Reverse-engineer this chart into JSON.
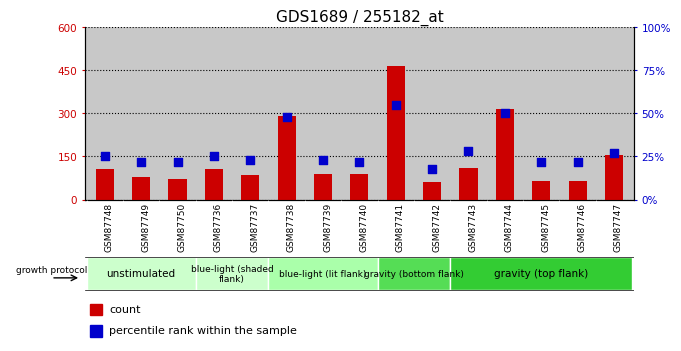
{
  "title": "GDS1689 / 255182_at",
  "samples": [
    "GSM87748",
    "GSM87749",
    "GSM87750",
    "GSM87736",
    "GSM87737",
    "GSM87738",
    "GSM87739",
    "GSM87740",
    "GSM87741",
    "GSM87742",
    "GSM87743",
    "GSM87744",
    "GSM87745",
    "GSM87746",
    "GSM87747"
  ],
  "counts": [
    108,
    80,
    70,
    108,
    85,
    290,
    90,
    90,
    465,
    60,
    110,
    315,
    65,
    65,
    155
  ],
  "percentiles": [
    25,
    22,
    22,
    25,
    23,
    48,
    23,
    22,
    55,
    18,
    28,
    50,
    22,
    22,
    27
  ],
  "ylim_left": [
    0,
    600
  ],
  "ylim_right": [
    0,
    100
  ],
  "yticks_left": [
    0,
    150,
    300,
    450,
    600
  ],
  "yticks_right": [
    0,
    25,
    50,
    75,
    100
  ],
  "ytick_labels_right": [
    "0%",
    "25%",
    "50%",
    "75%",
    "100%"
  ],
  "group_info": [
    {
      "label": "unstimulated",
      "xstart": 0,
      "xend": 2,
      "color": "#ccffcc"
    },
    {
      "label": "blue-light (shaded\nflank)",
      "xstart": 3,
      "xend": 4,
      "color": "#ccffcc"
    },
    {
      "label": "blue-light (lit flank)",
      "xstart": 5,
      "xend": 7,
      "color": "#aaffaa"
    },
    {
      "label": "gravity (bottom flank)",
      "xstart": 8,
      "xend": 9,
      "color": "#55dd55"
    },
    {
      "label": "gravity (top flank)",
      "xstart": 10,
      "xend": 14,
      "color": "#33cc33"
    }
  ],
  "bar_color": "#cc0000",
  "dot_color": "#0000cc",
  "bar_width": 0.5,
  "dot_size": 28,
  "plot_bg_color": "#c8c8c8",
  "legend_count_color": "#cc0000",
  "legend_pct_color": "#0000cc",
  "title_fontsize": 11,
  "tick_fontsize": 7.5,
  "group_fontsize_large": 7.5,
  "group_fontsize_small": 6.5,
  "legend_fontsize": 8
}
